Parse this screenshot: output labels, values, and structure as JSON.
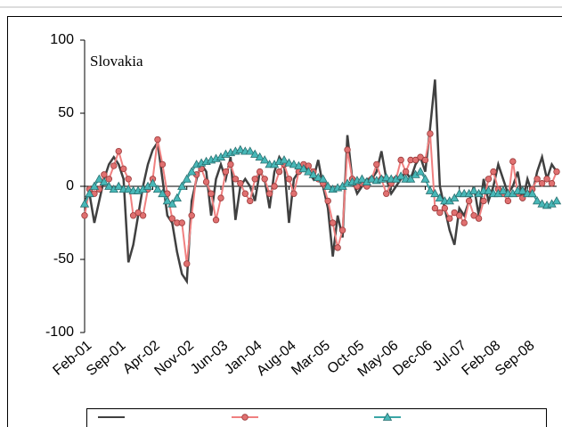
{
  "chart_data": {
    "type": "line",
    "title": "Slovakia",
    "categories": [
      "Feb-01",
      null,
      null,
      null,
      null,
      null,
      null,
      "Sep-01",
      null,
      null,
      null,
      null,
      null,
      null,
      "Apr-02",
      null,
      null,
      null,
      null,
      null,
      null,
      "Nov-02",
      null,
      null,
      null,
      null,
      null,
      null,
      "Jun-03",
      null,
      null,
      null,
      null,
      null,
      null,
      "Jan-04",
      null,
      null,
      null,
      null,
      null,
      null,
      "Aug-04",
      null,
      null,
      null,
      null,
      null,
      null,
      "Mar-05",
      null,
      null,
      null,
      null,
      null,
      null,
      "Oct-05",
      null,
      null,
      null,
      null,
      null,
      null,
      "May-06",
      null,
      null,
      null,
      null,
      null,
      null,
      "Dec-06",
      null,
      null,
      null,
      null,
      null,
      null,
      "Jul-07",
      null,
      null,
      null,
      null,
      null,
      null,
      "Feb-08",
      null,
      null,
      null,
      null,
      null,
      null,
      "Sep-08",
      null,
      null,
      null,
      null,
      null,
      null
    ],
    "series": [
      {
        "color": "#404040",
        "marker": "none",
        "values": [
          -10,
          -5,
          -25,
          -10,
          5,
          15,
          20,
          15,
          5,
          -52,
          -40,
          -20,
          0,
          15,
          25,
          30,
          5,
          -20,
          -25,
          -45,
          -60,
          -65,
          -10,
          5,
          15,
          10,
          -20,
          5,
          15,
          5,
          20,
          -23,
          0,
          5,
          0,
          -10,
          10,
          5,
          -15,
          10,
          20,
          15,
          -25,
          5,
          10,
          15,
          10,
          5,
          18,
          0,
          -15,
          -48,
          -20,
          -35,
          35,
          5,
          -5,
          0,
          5,
          5,
          10,
          24,
          5,
          -5,
          0,
          5,
          10,
          5,
          15,
          20,
          10,
          40,
          73,
          0,
          -15,
          -30,
          -40,
          -15,
          -20,
          -10,
          0,
          -20,
          5,
          -10,
          0,
          15,
          5,
          -5,
          0,
          10,
          -10,
          5,
          -5,
          10,
          20,
          5,
          15,
          10
        ]
      },
      {
        "color": "#f08080",
        "marker": "circle",
        "values": [
          -20,
          -2,
          -5,
          -2,
          8,
          5,
          14,
          24,
          12,
          5,
          -20,
          -18,
          -20,
          -2,
          5,
          32,
          15,
          -5,
          -22,
          -25,
          -25,
          -53,
          -20,
          8,
          12,
          3,
          -5,
          -23,
          -8,
          10,
          15,
          5,
          2,
          -5,
          -10,
          5,
          10,
          5,
          -5,
          0,
          10,
          15,
          5,
          -5,
          10,
          15,
          14,
          10,
          5,
          2,
          -10,
          -25,
          -42,
          -30,
          25,
          5,
          0,
          2,
          0,
          5,
          15,
          5,
          -5,
          2,
          5,
          18,
          10,
          18,
          18,
          20,
          18,
          36,
          -15,
          -18,
          -15,
          -22,
          -18,
          -20,
          -25,
          -10,
          -20,
          -22,
          -10,
          5,
          10,
          -2,
          -5,
          -10,
          17,
          -5,
          -8,
          -5,
          -2,
          5,
          2,
          5,
          2,
          10
        ]
      },
      {
        "color": "#3aa6a6",
        "marker": "triangle",
        "values": [
          -12,
          -5,
          0,
          5,
          3,
          0,
          -2,
          0,
          -2,
          -2,
          -3,
          -3,
          -2,
          0,
          2,
          -2,
          -5,
          -10,
          -12,
          -8,
          0,
          5,
          10,
          15,
          16,
          17,
          18,
          19,
          20,
          22,
          23,
          24,
          25,
          24,
          24,
          22,
          20,
          18,
          15,
          15,
          17,
          18,
          16,
          15,
          14,
          12,
          10,
          8,
          6,
          5,
          0,
          -2,
          -1,
          0,
          2,
          3,
          4,
          5,
          3,
          5,
          4,
          5,
          6,
          5,
          5,
          7,
          5,
          5,
          8,
          10,
          5,
          -3,
          -5,
          -8,
          -10,
          -10,
          -8,
          -5,
          -5,
          -5,
          -3,
          -5,
          -3,
          -3,
          -5,
          -5,
          -3,
          -5,
          -5,
          -3,
          -3,
          -5,
          -5,
          -10,
          -12,
          -13,
          -12,
          -10
        ]
      }
    ],
    "ylim": [
      -100,
      100
    ],
    "yticks": [
      -100,
      -50,
      0,
      50,
      100
    ],
    "grid": false
  }
}
